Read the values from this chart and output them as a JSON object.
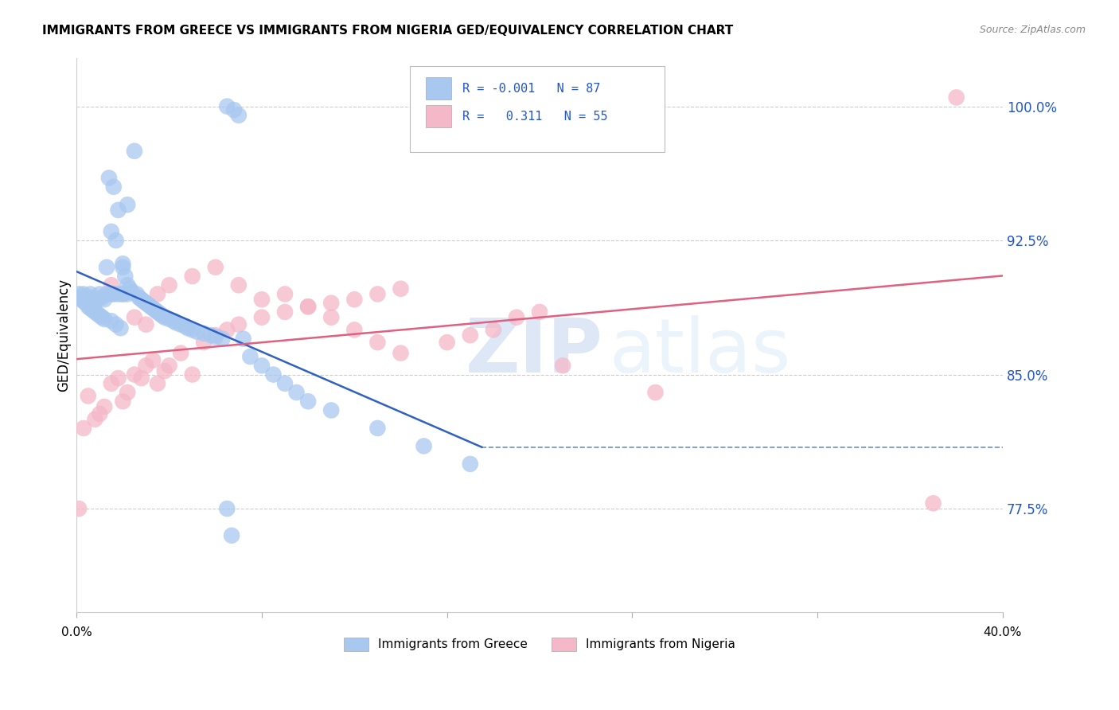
{
  "title": "IMMIGRANTS FROM GREECE VS IMMIGRANTS FROM NIGERIA GED/EQUIVALENCY CORRELATION CHART",
  "source": "Source: ZipAtlas.com",
  "ylabel": "GED/Equivalency",
  "yticks": [
    77.5,
    85.0,
    92.5,
    100.0
  ],
  "xmin": 0.0,
  "xmax": 0.4,
  "ymin": 0.717,
  "ymax": 1.027,
  "legend1_label": "Immigrants from Greece",
  "legend2_label": "Immigrants from Nigeria",
  "R1": -0.001,
  "N1": 87,
  "R2": 0.311,
  "N2": 55,
  "color_greece": "#a8c8f0",
  "color_nigeria": "#f4b8c8",
  "color_greece_line": "#3060c0",
  "color_nigeria_line": "#e06080",
  "greece_x": [
    0.001,
    0.002,
    0.002,
    0.003,
    0.003,
    0.004,
    0.004,
    0.005,
    0.005,
    0.006,
    0.006,
    0.007,
    0.007,
    0.008,
    0.008,
    0.009,
    0.009,
    0.01,
    0.01,
    0.011,
    0.011,
    0.012,
    0.012,
    0.013,
    0.013,
    0.014,
    0.015,
    0.015,
    0.016,
    0.017,
    0.017,
    0.018,
    0.019,
    0.02,
    0.02,
    0.021,
    0.022,
    0.022,
    0.023,
    0.024,
    0.025,
    0.026,
    0.027,
    0.028,
    0.029,
    0.03,
    0.031,
    0.032,
    0.033,
    0.034,
    0.035,
    0.036,
    0.037,
    0.038,
    0.04,
    0.042,
    0.043,
    0.045,
    0.047,
    0.048,
    0.05,
    0.052,
    0.055,
    0.058,
    0.06,
    0.063,
    0.065,
    0.068,
    0.07,
    0.072,
    0.075,
    0.08,
    0.085,
    0.09,
    0.095,
    0.1,
    0.11,
    0.13,
    0.15,
    0.17,
    0.065,
    0.067,
    0.015,
    0.016,
    0.018,
    0.02,
    0.022
  ],
  "greece_y": [
    0.895,
    0.893,
    0.892,
    0.891,
    0.895,
    0.89,
    0.893,
    0.888,
    0.892,
    0.887,
    0.895,
    0.886,
    0.893,
    0.885,
    0.891,
    0.884,
    0.892,
    0.883,
    0.895,
    0.882,
    0.893,
    0.881,
    0.892,
    0.91,
    0.895,
    0.96,
    0.88,
    0.93,
    0.955,
    0.878,
    0.925,
    0.942,
    0.876,
    0.912,
    0.91,
    0.905,
    0.9,
    0.945,
    0.898,
    0.896,
    0.975,
    0.895,
    0.893,
    0.892,
    0.891,
    0.89,
    0.889,
    0.888,
    0.887,
    0.886,
    0.885,
    0.884,
    0.883,
    0.882,
    0.881,
    0.88,
    0.879,
    0.878,
    0.877,
    0.876,
    0.875,
    0.874,
    0.873,
    0.872,
    0.871,
    0.87,
    1.0,
    0.998,
    0.995,
    0.87,
    0.86,
    0.855,
    0.85,
    0.845,
    0.84,
    0.835,
    0.83,
    0.82,
    0.81,
    0.8,
    0.775,
    0.76,
    0.895,
    0.895,
    0.895,
    0.895,
    0.895
  ],
  "nigeria_x": [
    0.001,
    0.003,
    0.005,
    0.008,
    0.01,
    0.012,
    0.015,
    0.018,
    0.02,
    0.022,
    0.025,
    0.028,
    0.03,
    0.033,
    0.035,
    0.038,
    0.04,
    0.045,
    0.05,
    0.055,
    0.06,
    0.065,
    0.07,
    0.08,
    0.09,
    0.1,
    0.11,
    0.12,
    0.13,
    0.14,
    0.015,
    0.02,
    0.025,
    0.03,
    0.035,
    0.04,
    0.05,
    0.06,
    0.07,
    0.08,
    0.09,
    0.1,
    0.11,
    0.12,
    0.13,
    0.14,
    0.16,
    0.17,
    0.18,
    0.19,
    0.2,
    0.21,
    0.25,
    0.38,
    0.37
  ],
  "nigeria_y": [
    0.775,
    0.82,
    0.838,
    0.825,
    0.828,
    0.832,
    0.845,
    0.848,
    0.835,
    0.84,
    0.85,
    0.848,
    0.855,
    0.858,
    0.845,
    0.852,
    0.855,
    0.862,
    0.85,
    0.868,
    0.872,
    0.875,
    0.878,
    0.882,
    0.885,
    0.888,
    0.89,
    0.892,
    0.895,
    0.898,
    0.9,
    0.895,
    0.882,
    0.878,
    0.895,
    0.9,
    0.905,
    0.91,
    0.9,
    0.892,
    0.895,
    0.888,
    0.882,
    0.875,
    0.868,
    0.862,
    0.868,
    0.872,
    0.875,
    0.882,
    0.885,
    0.855,
    0.84,
    1.005,
    0.778
  ]
}
